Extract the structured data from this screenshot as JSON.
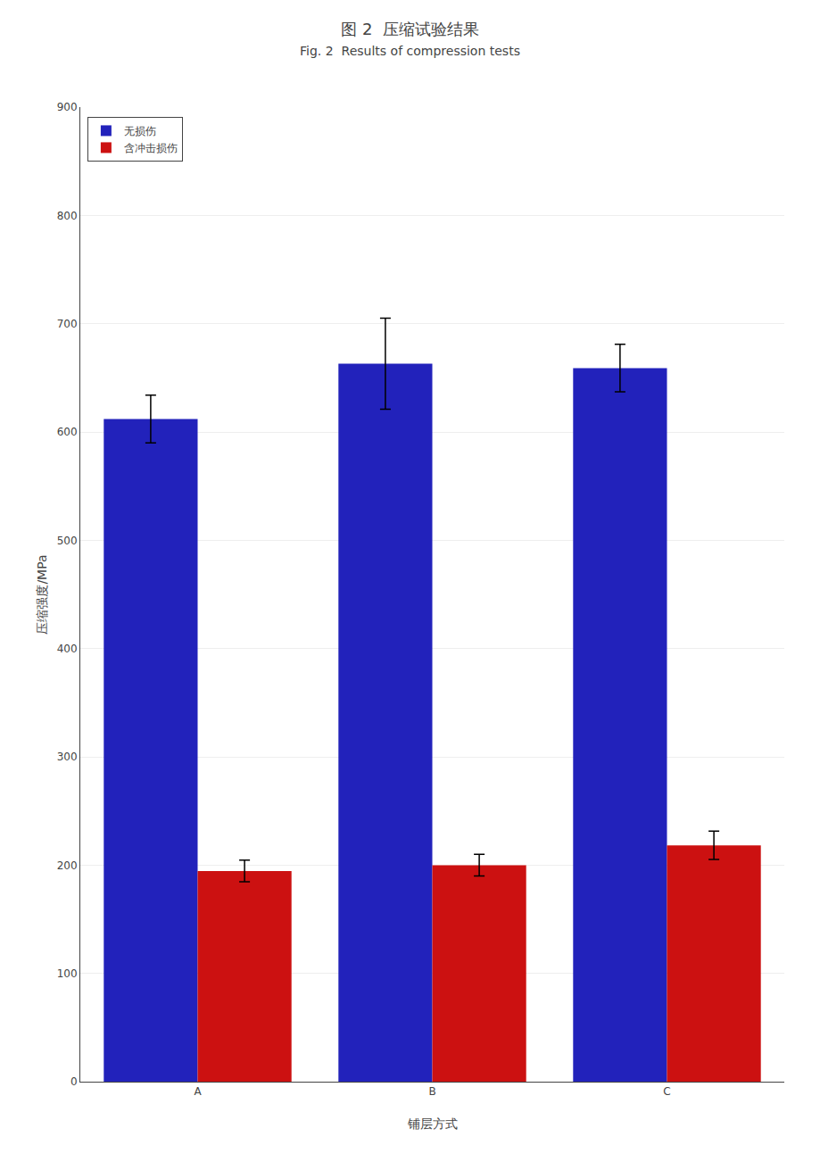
{
  "chart_data": {
    "type": "bar",
    "title": "图 2  压缩试验结果",
    "subtitle": "Fig. 2  Results of compression tests",
    "x_label": "铺层方式",
    "y_label": "压缩强度/MPa",
    "categories": [
      "A",
      "B",
      "C"
    ],
    "series": [
      {
        "name": "无损伤",
        "color": "#2222bb",
        "values": [
          612,
          663,
          659
        ],
        "errors": [
          22,
          42,
          22
        ]
      },
      {
        "name": "含冲击损伤",
        "color": "#cc1111",
        "values": [
          194.6,
          199.9,
          218.3
        ],
        "errors": [
          10,
          10,
          13
        ]
      }
    ],
    "ylim": [
      0,
      900
    ],
    "yticks": [
      0,
      100,
      200,
      300,
      400,
      500,
      600,
      700,
      800,
      900
    ],
    "grid": true,
    "legend": "upper left"
  }
}
